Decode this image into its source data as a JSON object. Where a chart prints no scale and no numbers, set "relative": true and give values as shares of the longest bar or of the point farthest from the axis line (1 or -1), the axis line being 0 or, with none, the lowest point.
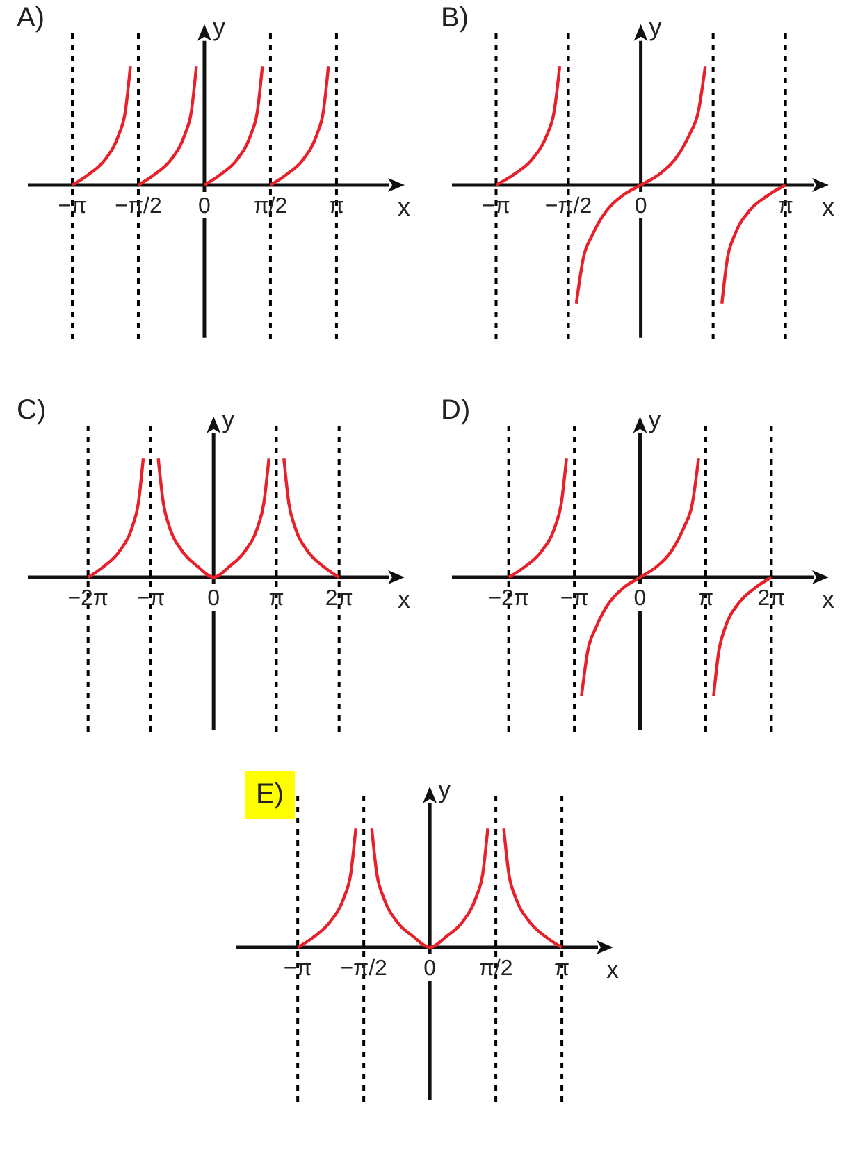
{
  "chart_data": [
    {
      "type": "line",
      "title": "A)",
      "xlabel": "x",
      "ylabel": "y",
      "relative": true,
      "tick_labels": "x",
      "marker": "none",
      "grid": false,
      "xlim": [
        -4.2,
        4.4
      ],
      "xticks": [
        {
          "value": -3.1416,
          "label": "−π"
        },
        {
          "value": -1.5708,
          "label": "−π/2"
        },
        {
          "value": 0,
          "label": "0"
        },
        {
          "value": 1.5708,
          "label": "π/2"
        },
        {
          "value": 3.1416,
          "label": "π"
        }
      ],
      "ref_lines": [
        {
          "axis": "x",
          "value": -3.1416,
          "color": "#000000",
          "line_style": "dashed"
        },
        {
          "axis": "x",
          "value": -1.5708,
          "color": "#000000",
          "line_style": "dashed"
        },
        {
          "axis": "x",
          "value": 1.5708,
          "color": "#000000",
          "line_style": "dashed"
        },
        {
          "axis": "x",
          "value": 3.1416,
          "color": "#000000",
          "line_style": "dashed"
        }
      ],
      "series": [
        {
          "color": "#e8202a",
          "x": [
            -3.14,
            -2.75,
            -2.35,
            -2.04,
            -1.88,
            -1.76,
            -1.6,
            -1.57,
            -1.18,
            -0.78,
            -0.47,
            -0.31,
            -0.19,
            -0.1,
            0,
            0.39,
            0.79,
            1.1,
            1.26,
            1.38,
            1.5,
            1.57,
            1.96,
            2.36,
            2.67,
            2.83,
            2.95
          ],
          "values": [
            0,
            0.09,
            0.22,
            0.42,
            0.62,
            1,
            null,
            0,
            0.09,
            0.22,
            0.42,
            0.62,
            1,
            null,
            0,
            0.09,
            0.22,
            0.42,
            0.62,
            1,
            null,
            0,
            0.09,
            0.22,
            0.42,
            0.62,
            1
          ]
        }
      ]
    },
    {
      "type": "line",
      "title": "B)",
      "xlabel": "x",
      "ylabel": "y",
      "relative": true,
      "tick_labels": "x",
      "marker": "none",
      "grid": false,
      "xlim": [
        -4.1,
        3.75
      ],
      "xticks": [
        {
          "value": -3.1416,
          "label": "−π"
        },
        {
          "value": -1.5708,
          "label": "−π/2"
        },
        {
          "value": 0,
          "label": "0"
        },
        {
          "value": 3.1416,
          "label": "π"
        }
      ],
      "ref_lines": [
        {
          "axis": "x",
          "value": -3.1416,
          "color": "#000000",
          "line_style": "dashed"
        },
        {
          "axis": "x",
          "value": -1.5708,
          "color": "#000000",
          "line_style": "dashed"
        },
        {
          "axis": "x",
          "value": 1.5708,
          "color": "#000000",
          "line_style": "dashed"
        },
        {
          "axis": "x",
          "value": 3.1416,
          "color": "#000000",
          "line_style": "dashed"
        }
      ],
      "series": [
        {
          "color": "#e8202a",
          "x": [
            -3.14,
            -2.75,
            -2.35,
            -2.04,
            -1.88,
            -1.76,
            -1.6,
            -1.4,
            -1.25,
            -1.05,
            -0.75,
            -0.4,
            0,
            0.4,
            0.75,
            1.05,
            1.25,
            1.4,
            1.5,
            1.76,
            1.88,
            2.04,
            2.35,
            2.75,
            3.14
          ],
          "values": [
            0,
            0.09,
            0.22,
            0.42,
            0.62,
            1,
            null,
            -1,
            -0.62,
            -0.42,
            -0.22,
            -0.09,
            0,
            0.09,
            0.22,
            0.42,
            0.62,
            1,
            null,
            -1,
            -0.62,
            -0.42,
            -0.22,
            -0.09,
            0
          ]
        }
      ]
    },
    {
      "type": "line",
      "title": "C)",
      "xlabel": "x",
      "ylabel": "y",
      "relative": true,
      "tick_labels": "x",
      "marker": "none",
      "grid": false,
      "xlim": [
        -9.3,
        8.8
      ],
      "xticks": [
        {
          "value": -6.2832,
          "label": "−2π"
        },
        {
          "value": -3.1416,
          "label": "−π"
        },
        {
          "value": 0,
          "label": "0"
        },
        {
          "value": 3.1416,
          "label": "π"
        },
        {
          "value": 6.2832,
          "label": "2π"
        }
      ],
      "ref_lines": [
        {
          "axis": "x",
          "value": -6.2832,
          "color": "#000000",
          "line_style": "dashed"
        },
        {
          "axis": "x",
          "value": -3.1416,
          "color": "#000000",
          "line_style": "dashed"
        },
        {
          "axis": "x",
          "value": 3.1416,
          "color": "#000000",
          "line_style": "dashed"
        },
        {
          "axis": "x",
          "value": 6.2832,
          "color": "#000000",
          "line_style": "dashed"
        }
      ],
      "series": [
        {
          "color": "#e8202a",
          "x": [
            -6.28,
            -5.5,
            -4.71,
            -4.08,
            -3.77,
            -3.52,
            -3.2,
            -2.77,
            -2.51,
            -2.2,
            -1.57,
            -0.79,
            0,
            0.79,
            1.57,
            2.2,
            2.51,
            2.77,
            3.2,
            3.52,
            3.77,
            4.08,
            4.71,
            5.5,
            6.28
          ],
          "values": [
            0,
            0.09,
            0.22,
            0.42,
            0.62,
            1,
            null,
            1,
            0.62,
            0.42,
            0.22,
            0.09,
            0,
            0.09,
            0.22,
            0.42,
            0.62,
            1,
            null,
            1,
            0.62,
            0.42,
            0.22,
            0.09,
            0
          ]
        }
      ]
    },
    {
      "type": "line",
      "title": "D)",
      "xlabel": "x",
      "ylabel": "y",
      "relative": true,
      "tick_labels": "x",
      "marker": "none",
      "grid": false,
      "xlim": [
        -9.0,
        8.3
      ],
      "xticks": [
        {
          "value": -6.2832,
          "label": "−2π"
        },
        {
          "value": -3.1416,
          "label": "−π"
        },
        {
          "value": 0,
          "label": "0"
        },
        {
          "value": 3.1416,
          "label": "π"
        },
        {
          "value": 6.2832,
          "label": "2π"
        }
      ],
      "ref_lines": [
        {
          "axis": "x",
          "value": -6.2832,
          "color": "#000000",
          "line_style": "dashed"
        },
        {
          "axis": "x",
          "value": -3.1416,
          "color": "#000000",
          "line_style": "dashed"
        },
        {
          "axis": "x",
          "value": 3.1416,
          "color": "#000000",
          "line_style": "dashed"
        },
        {
          "axis": "x",
          "value": 6.2832,
          "color": "#000000",
          "line_style": "dashed"
        }
      ],
      "series": [
        {
          "color": "#e8202a",
          "x": [
            -6.28,
            -5.5,
            -4.71,
            -4.08,
            -3.77,
            -3.52,
            -3.2,
            -2.8,
            -2.5,
            -2.1,
            -1.5,
            -0.8,
            0,
            0.8,
            1.5,
            2.1,
            2.5,
            2.8,
            3.0,
            3.52,
            3.77,
            4.08,
            4.71,
            5.5,
            6.28
          ],
          "values": [
            0,
            0.09,
            0.22,
            0.42,
            0.62,
            1,
            null,
            -1,
            -0.62,
            -0.42,
            -0.22,
            -0.09,
            0,
            0.09,
            0.22,
            0.42,
            0.62,
            1,
            null,
            -1,
            -0.62,
            -0.42,
            -0.22,
            -0.09,
            0
          ]
        }
      ]
    },
    {
      "type": "line",
      "title": "E)",
      "xlabel": "x",
      "ylabel": "y",
      "relative": true,
      "tick_labels": "x",
      "marker": "none",
      "grid": false,
      "xlim": [
        -4.6,
        4.0
      ],
      "xticks": [
        {
          "value": -3.1416,
          "label": "−π"
        },
        {
          "value": -1.5708,
          "label": "−π/2"
        },
        {
          "value": 0,
          "label": "0"
        },
        {
          "value": 1.5708,
          "label": "π/2"
        },
        {
          "value": 3.1416,
          "label": "π"
        }
      ],
      "ref_lines": [
        {
          "axis": "x",
          "value": -3.1416,
          "color": "#000000",
          "line_style": "dashed"
        },
        {
          "axis": "x",
          "value": -1.5708,
          "color": "#000000",
          "line_style": "dashed"
        },
        {
          "axis": "x",
          "value": 1.5708,
          "color": "#000000",
          "line_style": "dashed"
        },
        {
          "axis": "x",
          "value": 3.1416,
          "color": "#000000",
          "line_style": "dashed"
        }
      ],
      "series": [
        {
          "color": "#e8202a",
          "x": [
            -3.14,
            -2.75,
            -2.36,
            -2.04,
            -1.88,
            -1.76,
            -1.6,
            -1.38,
            -1.26,
            -1.1,
            -0.79,
            -0.39,
            0,
            0.39,
            0.79,
            1.1,
            1.26,
            1.38,
            1.6,
            1.76,
            1.88,
            2.04,
            2.36,
            2.75,
            3.14
          ],
          "values": [
            0,
            0.09,
            0.22,
            0.42,
            0.62,
            1,
            null,
            1,
            0.62,
            0.42,
            0.22,
            0.09,
            0,
            0.09,
            0.22,
            0.42,
            0.62,
            1,
            null,
            1,
            0.62,
            0.42,
            0.22,
            0.09,
            0
          ]
        }
      ]
    }
  ]
}
